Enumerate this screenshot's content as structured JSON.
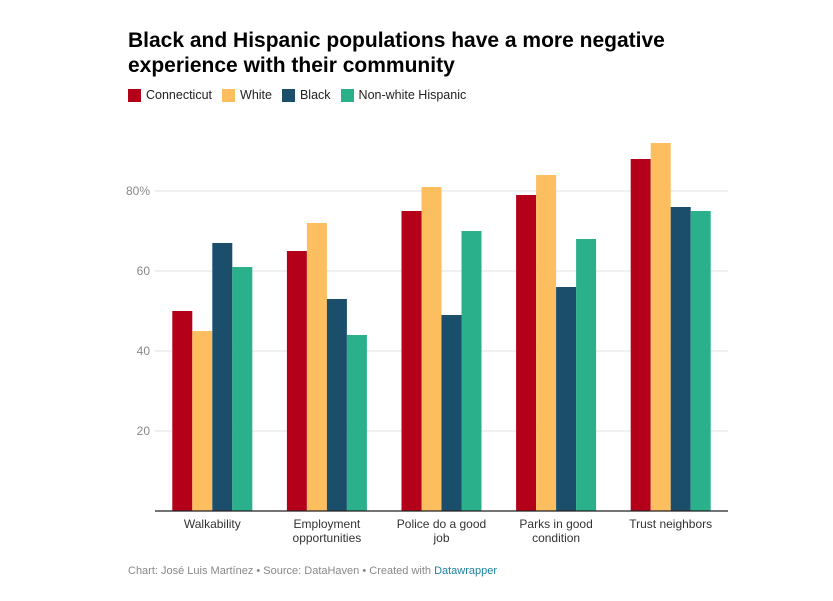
{
  "title": "Black and Hispanic populations have a more negative experience with their community",
  "footer": {
    "prefix": "Chart: José Luis Martínez • Source: DataHaven • Created with ",
    "link": "Datawrapper"
  },
  "chart_data": {
    "type": "bar",
    "title": "Black and Hispanic populations have a more negative experience with their community",
    "categories": [
      "Walkability",
      "Employment opportunities",
      "Police do a good job",
      "Parks in good condition",
      "Trust neighbors"
    ],
    "ylim": [
      0,
      95
    ],
    "yticks": [
      20,
      40,
      60,
      80
    ],
    "ytick_labels": [
      "20",
      "40",
      "60",
      "80%"
    ],
    "grid": true,
    "legend_placement": "top-left",
    "series": [
      {
        "name": "Connecticut",
        "color": "#b5001a",
        "values": [
          50,
          65,
          75,
          79,
          88
        ]
      },
      {
        "name": "White",
        "color": "#fdbe5f",
        "values": [
          45,
          72,
          81,
          84,
          92
        ]
      },
      {
        "name": "Black",
        "color": "#1b4e6b",
        "values": [
          67,
          53,
          49,
          56,
          76
        ]
      },
      {
        "name": "Non-white Hispanic",
        "color": "#2ab18c",
        "values": [
          61,
          44,
          70,
          68,
          75
        ]
      }
    ]
  }
}
